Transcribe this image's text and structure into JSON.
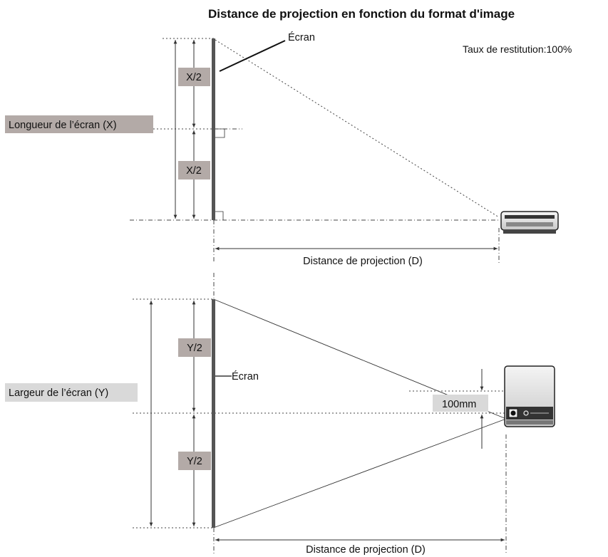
{
  "title": "Distance de projection en fonction du format d'image",
  "ratio_label": "Taux de restitution:100%",
  "top_view": {
    "screen_label": "Écran",
    "half_label_upper": "X/2",
    "half_label_lower": "X/2",
    "length_label": "Longueur de l’écran (X)",
    "distance_label": "Distance de projection (D)"
  },
  "side_view": {
    "screen_label": "Écran",
    "half_label_upper": "Y/2",
    "half_label_lower": "Y/2",
    "width_label": "Largeur de l’écran (Y)",
    "offset_label": "100mm",
    "distance_label": "Distance de projection (D)"
  },
  "colors": {
    "label_box": "#b3aaa7",
    "label_box_light": "#d9d9d9",
    "screen_fill": "#555555",
    "projector_body": "#e6e6e6",
    "projector_dark": "#222222"
  }
}
